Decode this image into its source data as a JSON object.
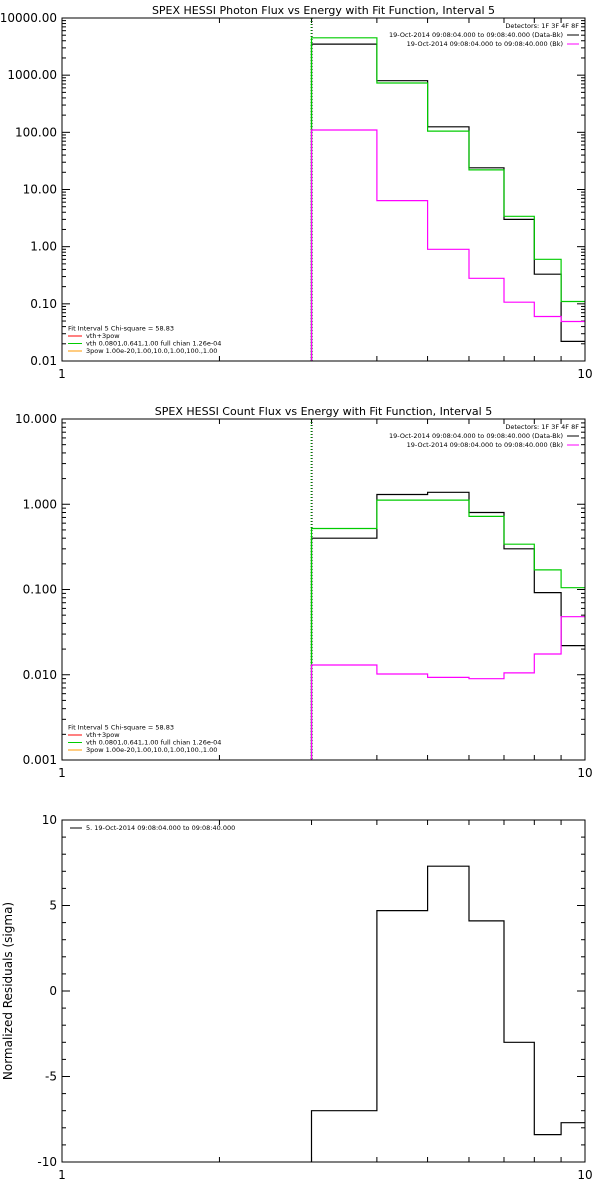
{
  "chart_data": [
    {
      "type": "line",
      "title": "SPEX HESSI Photon Flux vs Energy with Fit Function, Interval 5",
      "xscale": "log",
      "yscale": "log",
      "xlim": [
        1,
        10
      ],
      "ylim": [
        0.01,
        10000
      ],
      "yticks": [
        0.01,
        0.1,
        1,
        10,
        100,
        1000,
        10000
      ],
      "ytick_labels": [
        "0.01",
        "0.10",
        "1.00",
        "10.00",
        "100.00",
        "1000.00",
        "10000.00"
      ],
      "xticks": [
        1,
        10
      ],
      "xtick_labels": [
        "1",
        "10"
      ],
      "vline_x": 3,
      "bin_edges": [
        3,
        4,
        5,
        6,
        7,
        8,
        9,
        10
      ],
      "legend_top": [
        {
          "text": "Detectors: 1F 3F 4F 8F",
          "color": ""
        },
        {
          "text": "19-Oct-2014 09:08:04.000 to 09:08:40.000 (Data-Bk)",
          "color": "#000000"
        },
        {
          "text": "19-Oct-2014 09:08:04.000 to 09:08:40.000 (Bk)",
          "color": "#ff00ff"
        }
      ],
      "legend_bottom": [
        {
          "text": "Fit Interval 5   Chi-square = 58.83",
          "color": ""
        },
        {
          "text": "vth+3pow",
          "color": "#ff0000"
        },
        {
          "text": "vth 0.0801,0.641,1.00  full chian 1.26e-04",
          "color": "#00cc00"
        },
        {
          "text": "3pow 1.00e-20,1.00,10.0,1.00,100.,1.00",
          "color": "#ff9900"
        }
      ],
      "series": [
        {
          "color": "#000000",
          "values": [
            3500,
            800,
            125,
            24,
            3,
            0.33,
            0.022
          ]
        },
        {
          "color": "#00cc00",
          "values": [
            4500,
            730,
            105,
            22,
            3.4,
            0.6,
            0.11
          ]
        },
        {
          "color": "#ff00ff",
          "values": [
            110,
            6.4,
            0.9,
            0.28,
            0.107,
            0.06,
            0.049
          ]
        }
      ]
    },
    {
      "type": "line",
      "title": "SPEX HESSI Count Flux vs Energy with Fit Function, Interval 5",
      "xscale": "log",
      "yscale": "log",
      "xlim": [
        1,
        10
      ],
      "ylim": [
        0.001,
        10
      ],
      "yticks": [
        0.001,
        0.01,
        0.1,
        1,
        10
      ],
      "ytick_labels": [
        "0.001",
        "0.010",
        "0.100",
        "1.000",
        "10.000"
      ],
      "xticks": [
        1,
        10
      ],
      "xtick_labels": [
        "1",
        "10"
      ],
      "vline_x": 3,
      "bin_edges": [
        3,
        4,
        5,
        6,
        7,
        8,
        9,
        10
      ],
      "legend_top": [
        {
          "text": "Detectors: 1F 3F 4F 8F",
          "color": ""
        },
        {
          "text": "19-Oct-2014 09:08:04.000 to 09:08:40.000 (Data-Bk)",
          "color": "#000000"
        },
        {
          "text": "19-Oct-2014 09:08:04.000 to 09:08:40.000 (Bk)",
          "color": "#ff00ff"
        }
      ],
      "legend_bottom": [
        {
          "text": "Fit Interval 5   Chi-square = 58.83",
          "color": ""
        },
        {
          "text": "vth+3pow",
          "color": "#ff0000"
        },
        {
          "text": "vth 0.0801,0.641,1.00  full chian 1.26e-04",
          "color": "#00cc00"
        },
        {
          "text": "3pow 1.00e-20,1.00,10.0,1.00,100.,1.00",
          "color": "#ff9900"
        }
      ],
      "series": [
        {
          "color": "#000000",
          "values": [
            0.4,
            1.3,
            1.38,
            0.8,
            0.3,
            0.092,
            0.022
          ]
        },
        {
          "color": "#00cc00",
          "values": [
            0.52,
            1.12,
            1.12,
            0.72,
            0.34,
            0.17,
            0.105
          ]
        },
        {
          "color": "#ff00ff",
          "values": [
            0.013,
            0.0102,
            0.0093,
            0.009,
            0.0105,
            0.0175,
            0.048
          ]
        }
      ]
    },
    {
      "type": "line",
      "title": "",
      "ylabel": "Normalized Residuals (sigma)",
      "xscale": "log",
      "yscale": "linear",
      "xlim": [
        1,
        10
      ],
      "ylim": [
        -10,
        10
      ],
      "yticks": [
        -10,
        -5,
        0,
        5,
        10
      ],
      "ytick_labels": [
        "-10",
        "-5",
        "0",
        "5",
        "10"
      ],
      "xticks": [
        1,
        10
      ],
      "xtick_labels": [
        "1",
        "10"
      ],
      "bin_edges": [
        3,
        4,
        5,
        6,
        7,
        8,
        9,
        10
      ],
      "legend_top": [
        {
          "text": "5. 19-Oct-2014 09:08:04.000 to 09:08:40.000",
          "color": "#000000"
        }
      ],
      "series": [
        {
          "color": "#000000",
          "values": [
            -7,
            4.7,
            7.3,
            4.1,
            -3,
            -8.4,
            -7.7
          ]
        }
      ]
    }
  ]
}
